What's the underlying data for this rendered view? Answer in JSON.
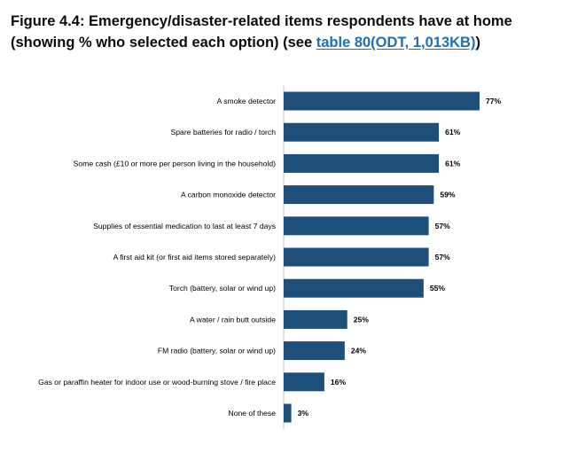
{
  "heading": {
    "prefix": "Figure 4.4: Emergency/disaster-related items respondents have at home (showing % who selected each option) (see ",
    "link_text": "table 80(ODT, 1,013KB)",
    "suffix": ")"
  },
  "chart_data": {
    "type": "bar",
    "orientation": "horizontal",
    "title": "Figure 4.4: Emergency/disaster-related items respondents have at home (showing % who selected each option)",
    "xlabel": "",
    "ylabel": "",
    "grid": false,
    "xlim": [
      0,
      100
    ],
    "bar_color": "#1d4f7a",
    "categories": [
      "A smoke detector",
      "Spare batteries for radio / torch",
      "Some cash (£10 or more per person living in the household)",
      "A carbon monoxide detector",
      "Supplies of essential medication to last at least 7 days",
      "A first aid kit (or first aid items stored separately)",
      "Torch (battery, solar or wind up)",
      "A water / rain butt outside",
      "FM radio (battery, solar or wind up)",
      "Gas or paraffin heater for indoor use or wood-burning stove / fire place",
      "None of these"
    ],
    "values": [
      77,
      61,
      61,
      59,
      57,
      57,
      55,
      25,
      24,
      16,
      3
    ],
    "value_labels": [
      "77%",
      "61%",
      "61%",
      "59%",
      "57%",
      "57%",
      "55%",
      "25%",
      "24%",
      "16%",
      "3%"
    ]
  }
}
